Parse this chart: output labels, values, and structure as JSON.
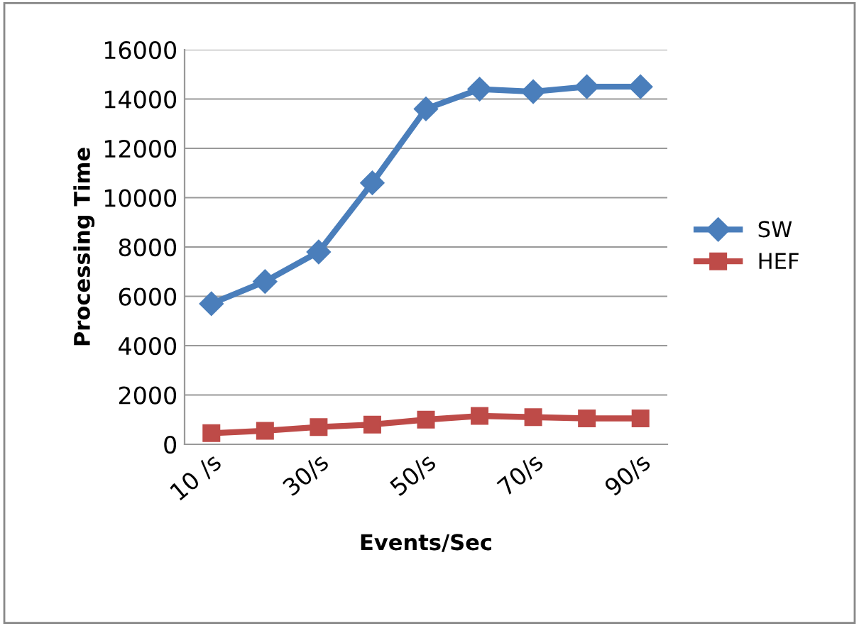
{
  "chart_data": {
    "type": "line",
    "xlabel": "Events/Sec",
    "ylabel": "Processing Time",
    "categories": [
      "10 /s",
      null,
      "30/s",
      null,
      "50/s",
      null,
      "70/s",
      null,
      "90/s"
    ],
    "series": [
      {
        "name": "SW",
        "color": "#4a7ebb",
        "marker": "diamond",
        "values": [
          5700,
          6600,
          7800,
          10600,
          13600,
          14400,
          14300,
          14500,
          14500
        ]
      },
      {
        "name": "HEF",
        "color": "#be4b48",
        "marker": "square",
        "values": [
          450,
          550,
          700,
          800,
          1000,
          1150,
          1100,
          1050,
          1050
        ]
      }
    ],
    "ylim": [
      0,
      16000
    ],
    "yticks": [
      0,
      2000,
      4000,
      6000,
      8000,
      10000,
      12000,
      14000,
      16000
    ],
    "grid": "y",
    "legend": "right",
    "line_style": "solid"
  }
}
